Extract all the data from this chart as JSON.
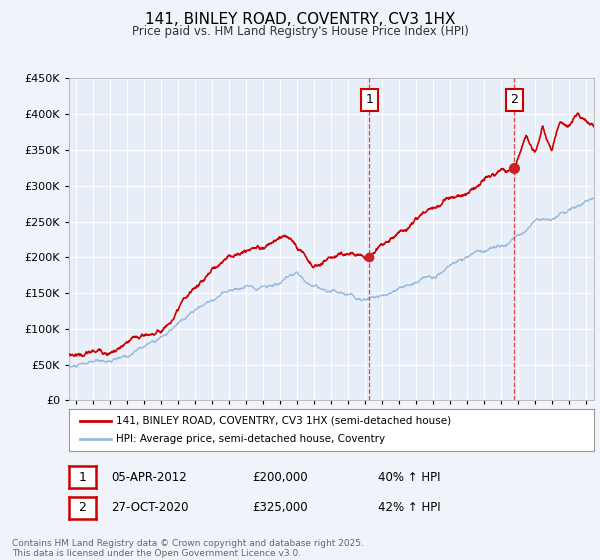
{
  "title": "141, BINLEY ROAD, COVENTRY, CV3 1HX",
  "subtitle": "Price paid vs. HM Land Registry's House Price Index (HPI)",
  "ylim": [
    0,
    450000
  ],
  "yticks": [
    0,
    50000,
    100000,
    150000,
    200000,
    250000,
    300000,
    350000,
    400000,
    450000
  ],
  "ytick_labels": [
    "£0",
    "£50K",
    "£100K",
    "£150K",
    "£200K",
    "£250K",
    "£300K",
    "£350K",
    "£400K",
    "£450K"
  ],
  "xlim_start": 1994.6,
  "xlim_end": 2025.5,
  "red_line_color": "#cc0000",
  "blue_line_color": "#99bbdd",
  "marker1_x": 2012.27,
  "marker1_y_red": 200000,
  "marker2_x": 2020.82,
  "marker2_y_red": 325000,
  "legend_label_red": "141, BINLEY ROAD, COVENTRY, CV3 1HX (semi-detached house)",
  "legend_label_blue": "HPI: Average price, semi-detached house, Coventry",
  "annotation1_date": "05-APR-2012",
  "annotation1_price": "£200,000",
  "annotation1_hpi": "40% ↑ HPI",
  "annotation2_date": "27-OCT-2020",
  "annotation2_price": "£325,000",
  "annotation2_hpi": "42% ↑ HPI",
  "footer": "Contains HM Land Registry data © Crown copyright and database right 2025.\nThis data is licensed under the Open Government Licence v3.0.",
  "bg_color": "#f0f4fa",
  "plot_bg_color": "#e8eef8"
}
